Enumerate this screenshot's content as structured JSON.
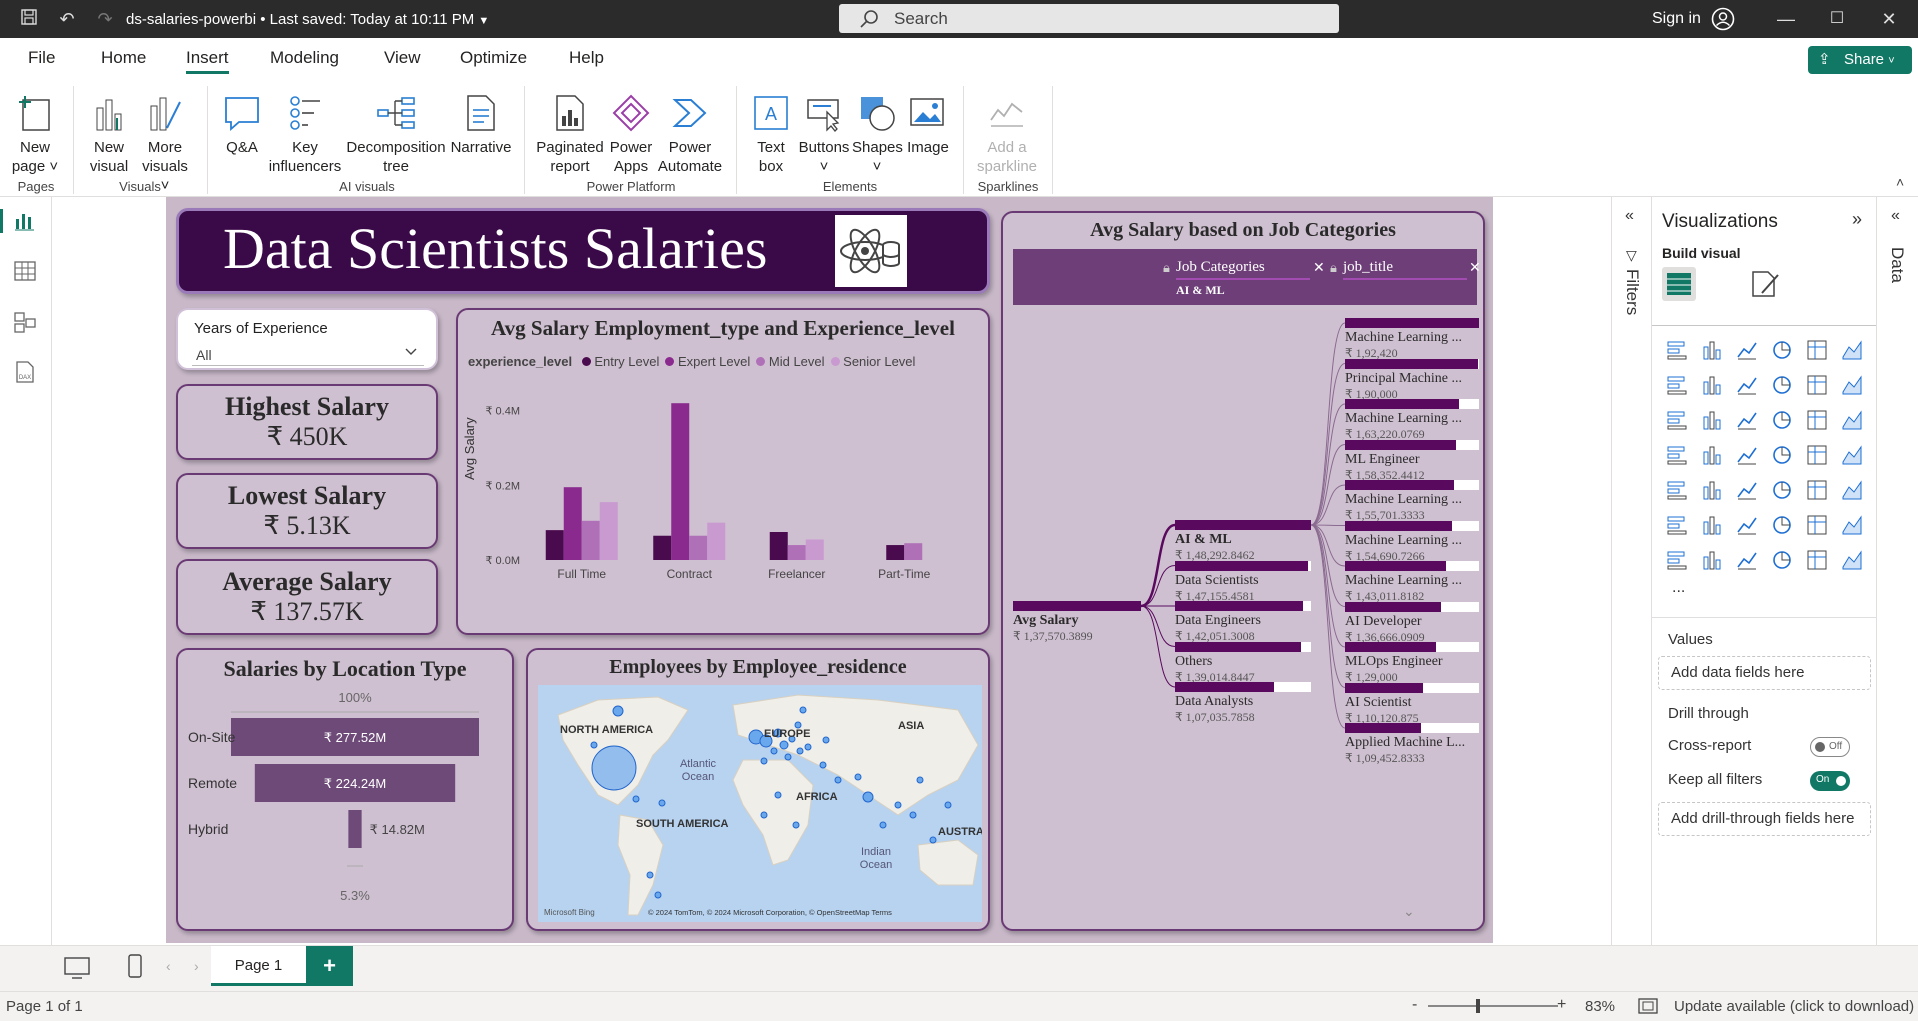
{
  "titlebar": {
    "file": "ds-salaries-powerbi",
    "saved": "Last saved: Today at 10:11 PM",
    "search": "Search",
    "signin": "Sign in"
  },
  "menu": {
    "file": "File",
    "home": "Home",
    "insert": "Insert",
    "modeling": "Modeling",
    "view": "View",
    "optimize": "Optimize",
    "help": "Help",
    "share": "Share"
  },
  "ribbon": {
    "new_page": "New",
    "new_page2": "page",
    "new_visual": "New",
    "new_visual2": "visual",
    "more_visuals": "More",
    "more_visuals2": "visuals",
    "qa": "Q&A",
    "key_inf": "Key",
    "key_inf2": "influencers",
    "decomp": "Decomposition",
    "decomp2": "tree",
    "narrative": "Narrative",
    "paginated": "Paginated",
    "paginated2": "report",
    "power_apps": "Power",
    "power_apps2": "Apps",
    "power_automate": "Power",
    "power_automate2": "Automate",
    "text_box": "Text",
    "text_box2": "box",
    "buttons": "Buttons",
    "shapes": "Shapes",
    "image": "Image",
    "sparkline": "Add a",
    "sparkline2": "sparkline",
    "groups": {
      "pages": "Pages",
      "visuals": "Visuals",
      "ai": "AI visuals",
      "platform": "Power Platform",
      "elements": "Elements",
      "sparklines": "Sparklines"
    }
  },
  "report": {
    "title": "Data Scientists Salaries",
    "slicer": {
      "label": "Years of Experience",
      "value": "All"
    },
    "kpis": [
      {
        "title": "Highest Salary",
        "value": "₹ 450K"
      },
      {
        "title": "Lowest Salary",
        "value": "₹ 5.13K"
      },
      {
        "title": "Average Salary",
        "value": "₹ 137.57K"
      }
    ],
    "bar_chart": {
      "title": "Avg Salary Employment_type and Experience_level",
      "legend_title": "experience_level",
      "ylabel": "Avg Salary"
    },
    "funnel": {
      "title": "Salaries by Location Type",
      "top_pct": "100%",
      "bottom_pct": "5.3%"
    },
    "map": {
      "title": "Employees by Employee_residence",
      "labels": {
        "na": "NORTH AMERICA",
        "eu": "EUROPE",
        "asia": "ASIA",
        "atlantic": "Atlantic",
        "ocean": "Ocean",
        "africa": "AFRICA",
        "sa": "SOUTH AMERICA",
        "indian": "Indian",
        "indian_ocean": "Ocean",
        "aus": "AUSTRA"
      },
      "logo": "Microsoft Bing",
      "credit": "© 2024 TomTom, © 2024 Microsoft Corporation, © OpenStreetMap  Terms"
    },
    "decomp": {
      "title": "Avg Salary based on Job Categories",
      "hdr1": "Job Categories",
      "hdr1_sub": "AI & ML",
      "hdr2": "job_title",
      "root": {
        "label": "Avg Salary",
        "value": "₹ 1,37,570.3899"
      },
      "categories": [
        {
          "label": "AI & ML",
          "value": "₹ 1,48,292.8462",
          "fill": 1.0
        },
        {
          "label": "Data Scientists",
          "value": "₹ 1,47,155.4581",
          "fill": 0.98
        },
        {
          "label": "Data Engineers",
          "value": "₹ 1,42,051.3008",
          "fill": 0.94
        },
        {
          "label": "Others",
          "value": "₹ 1,39,014.8447",
          "fill": 0.93
        },
        {
          "label": "Data Analysts",
          "value": "₹ 1,07,035.7858",
          "fill": 0.73
        }
      ],
      "titles": [
        {
          "label": "Machine Learning ...",
          "value": "₹ 1,92,420",
          "fill": 1.0
        },
        {
          "label": "Principal Machine ...",
          "value": "₹ 1,90,000",
          "fill": 0.99
        },
        {
          "label": "Machine Learning ...",
          "value": "₹ 1,63,220.0769",
          "fill": 0.85
        },
        {
          "label": "ML Engineer",
          "value": "₹ 1,58,352.4412",
          "fill": 0.83
        },
        {
          "label": "Machine Learning ...",
          "value": "₹ 1,55,701.3333",
          "fill": 0.81
        },
        {
          "label": "Machine Learning ...",
          "value": "₹ 1,54,690.7266",
          "fill": 0.8
        },
        {
          "label": "Machine Learning ...",
          "value": "₹ 1,43,011.8182",
          "fill": 0.75
        },
        {
          "label": "AI Developer",
          "value": "₹ 1,36,666.0909",
          "fill": 0.72
        },
        {
          "label": "MLOps Engineer",
          "value": "₹ 1,29,000",
          "fill": 0.68
        },
        {
          "label": "AI Scientist",
          "value": "₹ 1,10,120.875",
          "fill": 0.58
        },
        {
          "label": "Applied Machine L...",
          "value": "₹ 1,09,452.8333",
          "fill": 0.57
        }
      ]
    }
  },
  "chart_data": [
    {
      "type": "bar",
      "title": "Avg Salary Employment_type and Experience_level",
      "xlabel": "",
      "ylabel": "Avg Salary",
      "categories": [
        "Full Time",
        "Contract",
        "Freelancer",
        "Part-Time"
      ],
      "y_ticks": [
        "₹ 0.0M",
        "₹ 0.2M",
        "₹ 0.4M"
      ],
      "ylim": [
        0,
        0.45
      ],
      "colors": [
        "#4a0a4e",
        "#8a2a8e",
        "#b070b8",
        "#c89ad0"
      ],
      "series": [
        {
          "name": "Entry Level",
          "values": [
            0.08,
            0.065,
            0.075,
            0.04
          ]
        },
        {
          "name": "Expert Level",
          "values": [
            0.195,
            0.42,
            0,
            0
          ]
        },
        {
          "name": "Mid Level",
          "values": [
            0.105,
            0.065,
            0.04,
            0.045
          ]
        },
        {
          "name": "Senior Level",
          "values": [
            0.155,
            0.1,
            0.055,
            0
          ]
        }
      ]
    },
    {
      "type": "bar",
      "title": "Salaries by Location Type",
      "categories": [
        "On-Site",
        "Remote",
        "Hybrid"
      ],
      "values": [
        277.52,
        224.24,
        14.82
      ],
      "labels": [
        "₹ 277.52M",
        "₹ 224.24M",
        "₹ 14.82M"
      ]
    }
  ],
  "panes": {
    "filters": "Filters",
    "viz_title": "Visualizations",
    "build": "Build visual",
    "values": "Values",
    "add_data": "Add data fields here",
    "drill": "Drill through",
    "cross": "Cross-report",
    "cross_state": "Off",
    "keep": "Keep all filters",
    "keep_state": "On",
    "add_drill": "Add drill-through fields here",
    "data": "Data",
    "more": "..."
  },
  "pages": {
    "tab": "Page 1"
  },
  "status": {
    "page": "Page 1 of 1",
    "zoom": "83%",
    "update": "Update available (click to download)"
  },
  "accent": "#117865",
  "report_purple": "#5a0a5e"
}
